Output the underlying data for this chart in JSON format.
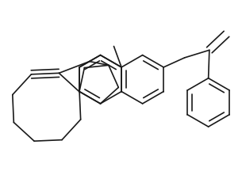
{
  "bg_color": "#ffffff",
  "line_color": "#1a1a1a",
  "line_width": 1.2,
  "fig_width": 3.05,
  "fig_height": 2.21,
  "dpi": 100
}
